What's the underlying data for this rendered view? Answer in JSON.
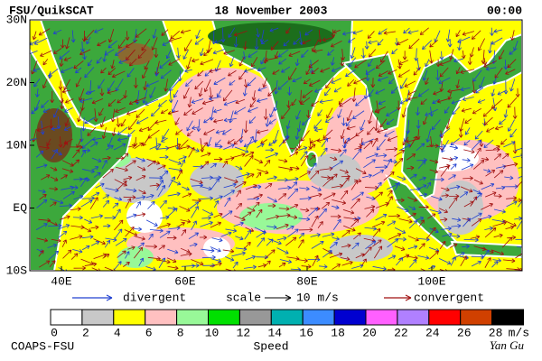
{
  "header": {
    "left": "FSU/QuikSCAT",
    "center": "18 November 2003",
    "right": "00:00"
  },
  "lat_labels": [
    "30N",
    "20N",
    "10N",
    "EQ",
    "10S"
  ],
  "lon_labels": [
    "40E",
    "60E",
    "80E",
    "100E"
  ],
  "legend": {
    "divergent": "divergent",
    "divergent_color": "#2040d0",
    "scale": "scale",
    "scale_value": "10 m/s",
    "convergent": "convergent",
    "convergent_color": "#a01010"
  },
  "colorbar": {
    "labels": [
      "0",
      "2",
      "4",
      "6",
      "8",
      "10",
      "12",
      "14",
      "16",
      "18",
      "20",
      "22",
      "24",
      "26",
      "28"
    ],
    "unit": "m/s",
    "title": "Speed",
    "colors": [
      "#ffffff",
      "#c8c8c8",
      "#ffff00",
      "#ffc0c0",
      "#98f898",
      "#00e000",
      "#989898",
      "#00b0b0",
      "#3c8cff",
      "#0000d0",
      "#ff60ff",
      "#b080ff",
      "#ff0000",
      "#d04000",
      "#000000"
    ]
  },
  "footer": {
    "left": "COAPS-FSU",
    "right": "Yan Gu"
  }
}
